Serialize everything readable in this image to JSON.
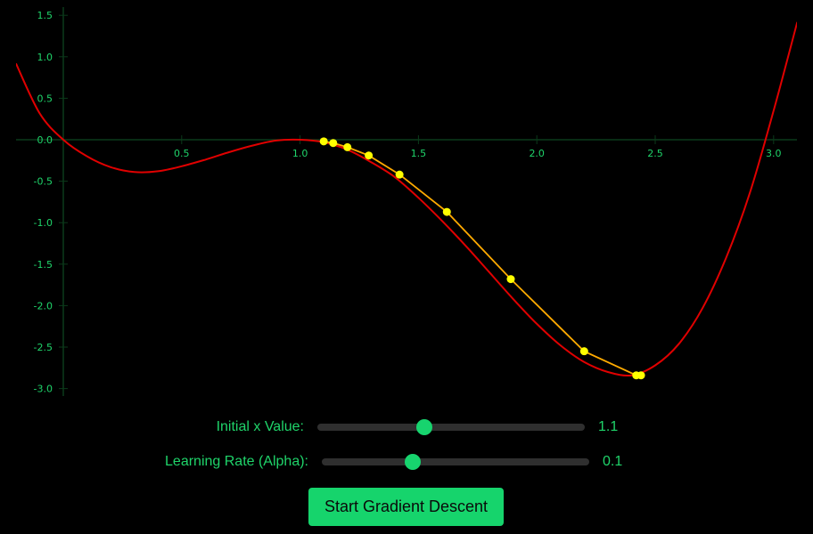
{
  "chart_data": {
    "type": "line",
    "title": "",
    "xlabel": "",
    "ylabel": "",
    "xlim": [
      -0.2,
      3.1
    ],
    "ylim": [
      -3.05,
      1.6
    ],
    "x_ticks": [
      "0.5",
      "1.0",
      "1.5",
      "2.0",
      "2.5",
      "3.0"
    ],
    "x_tick_values": [
      0.5,
      1.0,
      1.5,
      2.0,
      2.5,
      3.0
    ],
    "y_ticks": [
      "1.5",
      "1.0",
      "0.5",
      "0.0",
      "-0.5",
      "-1.0",
      "-1.5",
      "-2.0",
      "-2.5",
      "-3.0"
    ],
    "y_tick_values": [
      1.5,
      1.0,
      0.5,
      0.0,
      -0.5,
      -1.0,
      -1.5,
      -2.0,
      -2.5,
      -3.0
    ],
    "grid": false,
    "series": [
      {
        "function_points": [
          [
            -0.2,
            0.92
          ],
          [
            -0.1,
            0.32
          ],
          [
            0.0,
            0.0
          ],
          [
            0.1,
            -0.2
          ],
          [
            0.2,
            -0.33
          ],
          [
            0.3,
            -0.39
          ],
          [
            0.4,
            -0.38
          ],
          [
            0.5,
            -0.32
          ],
          [
            0.6,
            -0.24
          ],
          [
            0.7,
            -0.15
          ],
          [
            0.8,
            -0.07
          ],
          [
            0.9,
            -0.01
          ],
          [
            1.0,
            0.0
          ],
          [
            1.1,
            -0.03
          ],
          [
            1.2,
            -0.12
          ],
          [
            1.3,
            -0.27
          ],
          [
            1.4,
            -0.45
          ],
          [
            1.5,
            -0.7
          ],
          [
            1.6,
            -0.98
          ],
          [
            1.7,
            -1.28
          ],
          [
            1.8,
            -1.6
          ],
          [
            1.9,
            -1.92
          ],
          [
            2.0,
            -2.22
          ],
          [
            2.1,
            -2.48
          ],
          [
            2.2,
            -2.68
          ],
          [
            2.3,
            -2.8
          ],
          [
            2.4,
            -2.84
          ],
          [
            2.5,
            -2.72
          ],
          [
            2.6,
            -2.46
          ],
          [
            2.7,
            -2.03
          ],
          [
            2.8,
            -1.42
          ],
          [
            2.9,
            -0.64
          ],
          [
            3.0,
            0.35
          ],
          [
            3.1,
            1.42
          ]
        ],
        "color": "#e00000"
      },
      {
        "descent_points": [
          [
            1.1,
            -0.02
          ],
          [
            1.14,
            -0.04
          ],
          [
            1.2,
            -0.09
          ],
          [
            1.29,
            -0.19
          ],
          [
            1.42,
            -0.42
          ],
          [
            1.62,
            -0.87
          ],
          [
            1.89,
            -1.68
          ],
          [
            2.2,
            -2.55
          ],
          [
            2.42,
            -2.84
          ],
          [
            2.44,
            -2.84
          ]
        ],
        "color": "#ffff00",
        "line_color": "#ffaa00"
      }
    ]
  },
  "colors": {
    "accent": "#16d46c",
    "background": "#000000",
    "axis": "#0b3a1a",
    "curve": "#e00000",
    "descent": "#ffff00"
  },
  "controls": {
    "initial_x": {
      "label": "Initial x Value:",
      "value": "1.1",
      "fraction": 0.4
    },
    "alpha": {
      "label": "Learning Rate (Alpha):",
      "value": "0.1",
      "fraction": 0.34
    }
  },
  "start_button": {
    "label": "Start Gradient Descent"
  }
}
